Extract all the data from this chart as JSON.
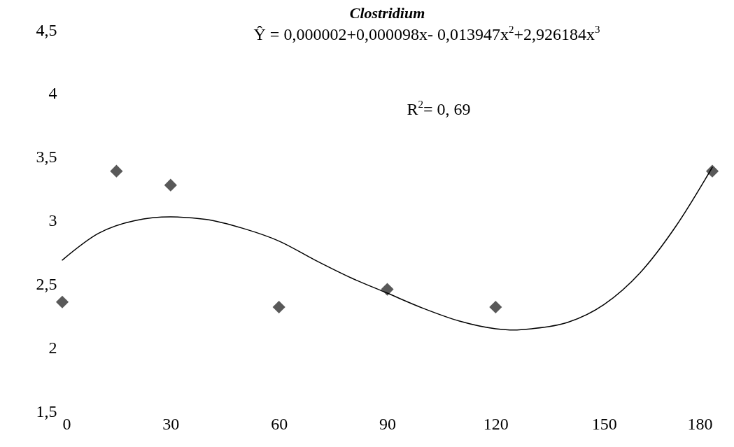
{
  "chart_data": {
    "type": "scatter",
    "title": "Clostridium",
    "annotations": [
      "Ŷ = 0,000002+0,000098x- 0,013947x$^{2}$+2,926184x$^{3}$",
      "R$^{2}$= 0, 69"
    ],
    "xlim": [
      0,
      180
    ],
    "xticks": [
      0,
      30,
      60,
      90,
      120,
      150,
      180
    ],
    "ylim": [
      1.5,
      4.5
    ],
    "yticks": [
      {
        "value": 1.5,
        "label": "1,5"
      },
      2,
      {
        "value": 2.5,
        "label": "2,5"
      },
      3,
      {
        "value": 3.5,
        "label": "3,5"
      },
      4,
      {
        "value": 4.5,
        "label": "4,5"
      }
    ],
    "grid": false,
    "series": [
      {
        "marker": "diamond",
        "color": "#595959",
        "x": [
          0,
          15,
          30,
          60,
          90,
          120,
          180
        ],
        "values": [
          2.36,
          3.39,
          3.28,
          2.32,
          2.46,
          2.32,
          3.39
        ]
      },
      {
        "type": "line",
        "marker": "none",
        "line_style": "solid",
        "color": "#000000",
        "x": [
          0,
          10,
          20,
          30,
          40,
          50,
          60,
          70,
          80,
          90,
          100,
          110,
          120,
          125,
          130,
          140,
          150,
          160,
          170,
          180
        ],
        "values": [
          2.69,
          2.9,
          3.0,
          3.03,
          3.01,
          2.94,
          2.84,
          2.69,
          2.55,
          2.43,
          2.31,
          2.21,
          2.15,
          2.14,
          2.15,
          2.2,
          2.34,
          2.59,
          2.96,
          3.42
        ]
      }
    ]
  }
}
